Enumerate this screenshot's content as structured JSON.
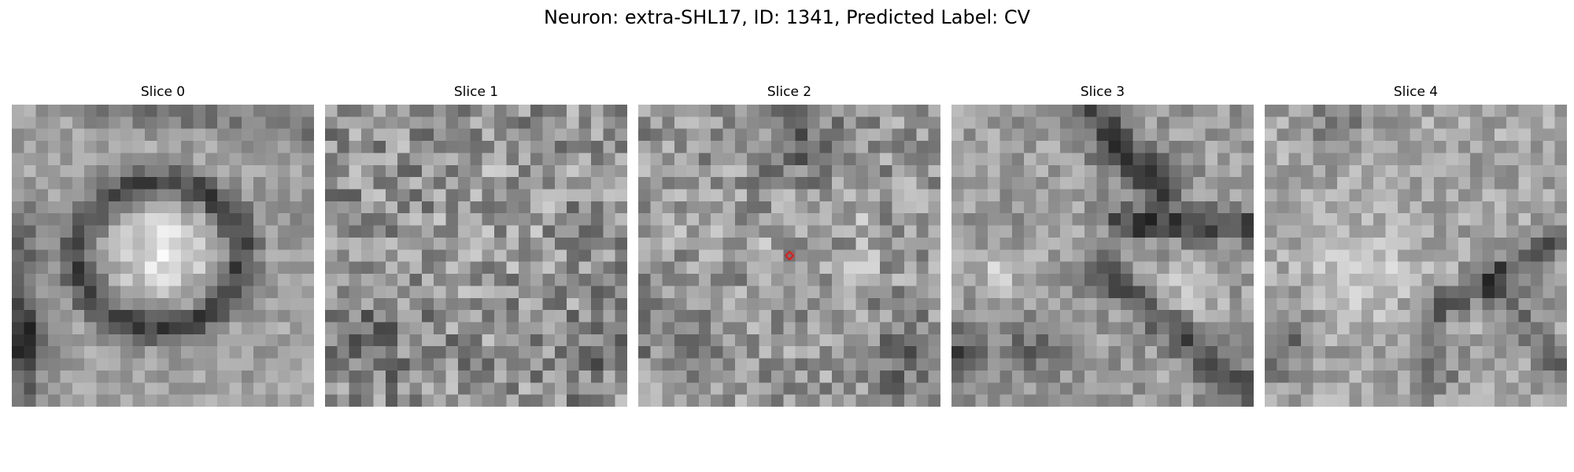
{
  "figure": {
    "title": "Neuron: extra-SHL17, ID: 1341, Predicted Label: CV"
  },
  "slices": [
    {
      "title": "Slice 0",
      "has_marker": false
    },
    {
      "title": "Slice 1",
      "has_marker": false
    },
    {
      "title": "Slice 2",
      "has_marker": true
    },
    {
      "title": "Slice 3",
      "has_marker": false
    },
    {
      "title": "Slice 4",
      "has_marker": false
    }
  ],
  "image_grid": {
    "rows": 25,
    "cols": 25,
    "colormap": "gray"
  },
  "marker": {
    "shape": "diamond",
    "color": "#e31a1c",
    "grid_row": 12,
    "grid_col": 12
  }
}
